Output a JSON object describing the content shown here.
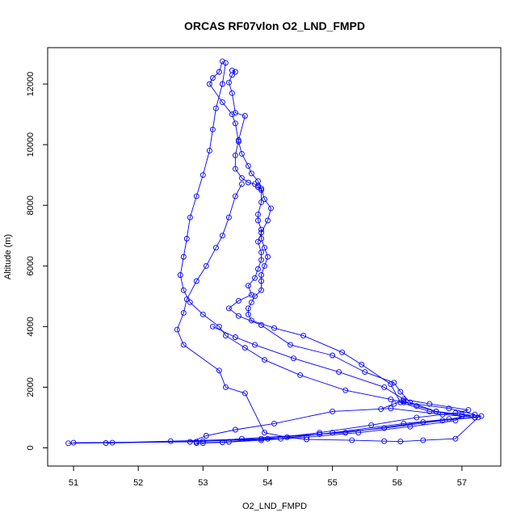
{
  "chart_data": {
    "type": "line",
    "title": "ORCAS RF07vlon O2_LND_FMPD",
    "xlabel": "O2_LND_FMPD",
    "ylabel": "Altitude (m)",
    "xlim": [
      50.6,
      57.6
    ],
    "ylim": [
      -600,
      13200
    ],
    "xticks": [
      51,
      52,
      53,
      54,
      55,
      56,
      57
    ],
    "yticks": [
      0,
      2000,
      4000,
      6000,
      8000,
      10000,
      12000
    ],
    "grid": false,
    "legend": "none",
    "series": [
      {
        "color": "#0000ff",
        "style": "line-with-open-circles",
        "x": [
          53.3,
          53.25,
          53.15,
          53.1,
          53.3,
          53.45,
          53.5,
          53.55,
          53.6,
          53.7,
          53.75,
          53.85,
          53.9,
          53.9,
          53.85,
          53.85,
          53.9,
          53.9,
          53.95,
          54.0,
          53.95,
          53.9,
          53.9,
          53.9,
          53.8,
          53.75,
          53.7,
          53.7,
          53.75,
          54.1,
          54.55,
          55.15,
          55.45,
          55.9,
          56.05,
          56.5,
          57.3,
          57.2,
          56.4,
          55.2,
          53.6,
          52.9,
          51.0
        ],
        "y": [
          12750,
          12400,
          12200,
          12000,
          11400,
          11000,
          10700,
          10100,
          9700,
          9300,
          9050,
          8800,
          8500,
          8100,
          7700,
          7500,
          7200,
          6900,
          6600,
          6300,
          6000,
          5700,
          5500,
          5200,
          5000,
          4800,
          4600,
          4400,
          4200,
          3950,
          3700,
          3150,
          2750,
          2100,
          1500,
          1200,
          1050,
          1000,
          850,
          500,
          300,
          200,
          170
        ]
      },
      {
        "color": "#0000ff",
        "style": "line-with-open-circles",
        "x": [
          53.45,
          53.5,
          53.45,
          53.4,
          53.45,
          53.5,
          53.65,
          53.55,
          53.5,
          53.5,
          53.6,
          53.7,
          53.8,
          53.85,
          53.85,
          53.9,
          53.95,
          54.05,
          54.0,
          53.9,
          53.85,
          53.9,
          53.9,
          53.85,
          53.8,
          53.7,
          53.75,
          53.55,
          53.4,
          53.55,
          53.9,
          54.35,
          55.0,
          55.5,
          55.95,
          56.05,
          56.2,
          56.6,
          57.0,
          57.2,
          56.8,
          56.1,
          55.0,
          54.2,
          53.0,
          51.5
        ],
        "y": [
          12450,
          12400,
          12300,
          12050,
          11700,
          11050,
          10950,
          10150,
          9650,
          9200,
          8900,
          8750,
          8700,
          8650,
          8600,
          8550,
          8200,
          7900,
          7500,
          7100,
          6800,
          6450,
          6200,
          5900,
          5600,
          5350,
          5050,
          4850,
          4600,
          4350,
          4050,
          3400,
          3050,
          2500,
          2150,
          1850,
          1500,
          1200,
          1100,
          1000,
          950,
          800,
          500,
          300,
          220,
          160
        ]
      },
      {
        "color": "#0000ff",
        "style": "line-with-open-circles",
        "x": [
          53.35,
          53.3,
          53.2,
          53.15,
          53.1,
          53.0,
          52.9,
          52.8,
          52.75,
          52.7,
          52.65,
          52.7,
          52.8,
          53.0,
          53.25,
          53.35,
          53.65,
          53.95,
          54.5,
          55.2,
          55.9,
          56.1,
          56.8,
          57.2,
          56.7,
          55.8,
          54.8,
          53.9,
          52.5,
          51.6,
          50.92
        ],
        "y": [
          12700,
          12000,
          11200,
          10500,
          9800,
          9000,
          8300,
          7600,
          6900,
          6300,
          5700,
          5200,
          4800,
          4400,
          4000,
          3700,
          3300,
          2900,
          2400,
          1900,
          1600,
          1500,
          1300,
          1100,
          900,
          650,
          450,
          300,
          220,
          170,
          150
        ]
      },
      {
        "color": "#0000ff",
        "style": "line-with-open-circles",
        "x": [
          53.6,
          53.5,
          53.4,
          53.3,
          53.2,
          53.05,
          52.9,
          52.75,
          52.7,
          52.6,
          52.7,
          53.25,
          53.35,
          53.65,
          53.95,
          54.3,
          54.6,
          55.3,
          55.8,
          56.05,
          56.4,
          56.9,
          57.25,
          56.7,
          55.9,
          55.0,
          54.1,
          53.5,
          53.05,
          52.8
        ],
        "y": [
          8700,
          8300,
          7600,
          7000,
          6600,
          6000,
          5500,
          4900,
          4450,
          3900,
          3400,
          2550,
          2000,
          1800,
          500,
          350,
          280,
          250,
          220,
          210,
          250,
          300,
          1000,
          1100,
          1300,
          1200,
          800,
          600,
          400,
          200
        ]
      },
      {
        "color": "#0000ff",
        "style": "line-with-open-circles",
        "x": [
          53.15,
          53.5,
          53.8,
          54.4,
          55.1,
          55.8,
          56.1,
          56.5,
          57.1,
          56.9,
          56.3,
          55.6,
          54.8,
          54.0,
          53.4,
          52.9
        ],
        "y": [
          4000,
          3650,
          3400,
          2950,
          2500,
          2000,
          1600,
          1450,
          1250,
          1150,
          1000,
          750,
          500,
          300,
          200,
          160
        ]
      },
      {
        "color": "#0000ff",
        "style": "line-with-open-circles",
        "x": [
          55.75,
          55.95,
          56.1,
          56.3,
          56.6,
          57.0,
          56.9,
          56.2,
          55.4,
          54.6,
          53.9,
          53.3,
          53.0
        ],
        "y": [
          1280,
          1450,
          1550,
          1380,
          1200,
          1050,
          900,
          700,
          500,
          350,
          250,
          180,
          160
        ]
      }
    ]
  }
}
